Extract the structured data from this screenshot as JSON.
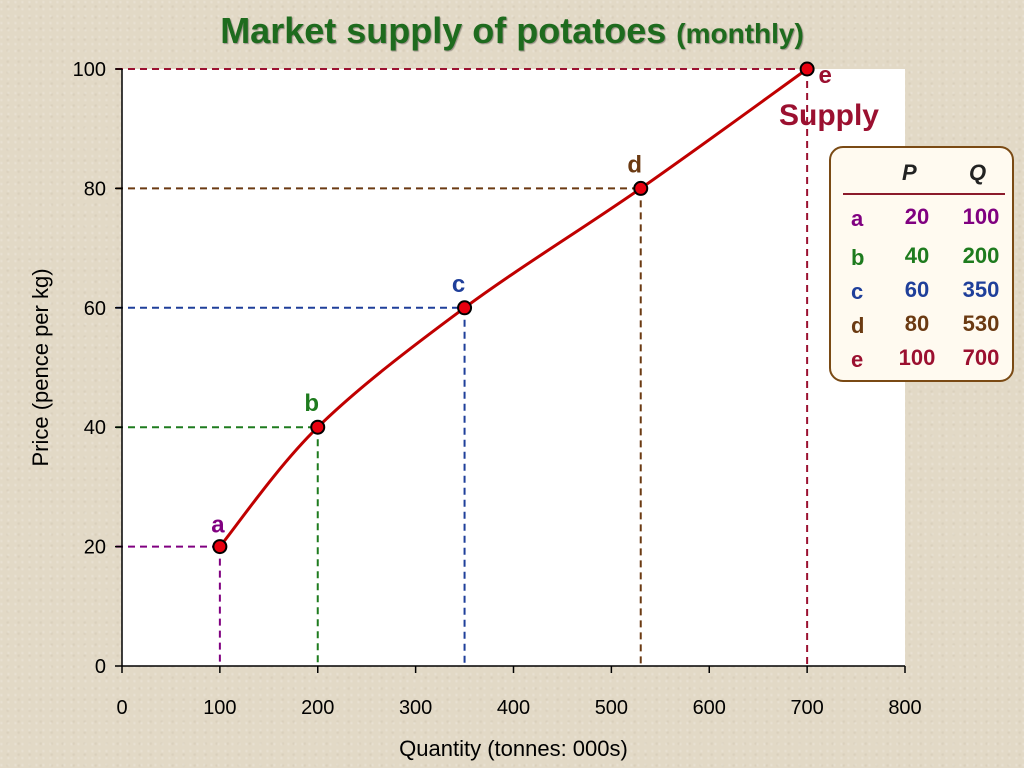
{
  "title": {
    "main": "Market supply of potatoes",
    "sub": "(monthly)"
  },
  "chart_data": {
    "type": "line",
    "title": "Market supply of potatoes (monthly)",
    "xlabel": "Quantity (tonnes: 000s)",
    "ylabel": "Price (pence per kg)",
    "xlim": [
      0,
      800
    ],
    "ylim": [
      0,
      100
    ],
    "xticks": [
      0,
      100,
      200,
      300,
      400,
      500,
      600,
      700,
      800
    ],
    "yticks": [
      0,
      20,
      40,
      60,
      80,
      100
    ],
    "series": [
      {
        "name": "Supply",
        "color": "#c00000"
      }
    ],
    "points": [
      {
        "label": "a",
        "x": 100,
        "y": 20,
        "color": "#800080"
      },
      {
        "label": "b",
        "x": 200,
        "y": 40,
        "color": "#1e7b1e"
      },
      {
        "label": "c",
        "x": 350,
        "y": 60,
        "color": "#1f3f9a"
      },
      {
        "label": "d",
        "x": 530,
        "y": 80,
        "color": "#6b3a12"
      },
      {
        "label": "e",
        "x": 700,
        "y": 100,
        "color": "#9b1030"
      }
    ],
    "curve_label": "Supply"
  },
  "table": {
    "headers": [
      "P",
      "Q"
    ],
    "rows": [
      {
        "label": "a",
        "P": "20",
        "Q": "100",
        "color": "#800080"
      },
      {
        "label": "b",
        "P": "40",
        "Q": "200",
        "color": "#1e7b1e"
      },
      {
        "label": "c",
        "P": "60",
        "Q": "350",
        "color": "#1f3f9a"
      },
      {
        "label": "d",
        "P": "80",
        "Q": "530",
        "color": "#6b3a12"
      },
      {
        "label": "e",
        "P": "100",
        "Q": "700",
        "color": "#9b1030"
      }
    ]
  }
}
